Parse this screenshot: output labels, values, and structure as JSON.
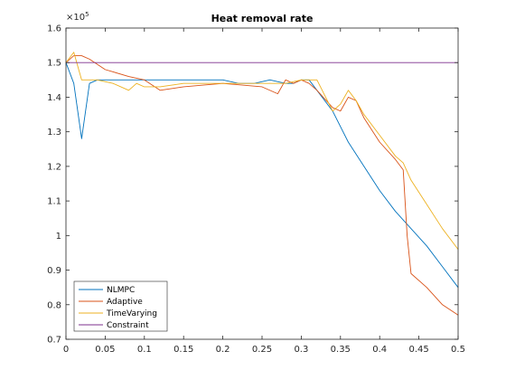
{
  "chart_data": {
    "type": "line",
    "title": "Heat removal rate",
    "xlabel": "",
    "ylabel": "",
    "y_exponent_label": "×10",
    "y_exponent_power": "5",
    "xlim": [
      0,
      0.5
    ],
    "ylim": [
      0.7,
      1.6
    ],
    "xticks": [
      0,
      0.05,
      0.1,
      0.15,
      0.2,
      0.25,
      0.3,
      0.35,
      0.4,
      0.45,
      0.5
    ],
    "xtick_labels": [
      "0",
      "0.05",
      "0.1",
      "0.15",
      "0.2",
      "0.25",
      "0.3",
      "0.35",
      "0.4",
      "0.45",
      "0.5"
    ],
    "yticks": [
      0.7,
      0.8,
      0.9,
      1.0,
      1.1,
      1.2,
      1.3,
      1.4,
      1.5,
      1.6
    ],
    "ytick_labels": [
      "0.7",
      "0.8",
      "0.9",
      "1",
      "1.1",
      "1.2",
      "1.3",
      "1.4",
      "1.5",
      "1.6"
    ],
    "grid": false,
    "legend_position": "bottom-left",
    "series": [
      {
        "name": "NLMPC",
        "color": "#0072BD",
        "x": [
          0,
          0.01,
          0.02,
          0.03,
          0.04,
          0.06,
          0.1,
          0.15,
          0.2,
          0.22,
          0.24,
          0.26,
          0.28,
          0.29,
          0.3,
          0.31,
          0.32,
          0.34,
          0.36,
          0.38,
          0.4,
          0.42,
          0.44,
          0.46,
          0.48,
          0.5
        ],
        "y": [
          1.5,
          1.44,
          1.28,
          1.44,
          1.45,
          1.45,
          1.45,
          1.45,
          1.45,
          1.44,
          1.44,
          1.45,
          1.44,
          1.44,
          1.45,
          1.45,
          1.42,
          1.36,
          1.27,
          1.2,
          1.13,
          1.07,
          1.02,
          0.97,
          0.91,
          0.85
        ]
      },
      {
        "name": "Adaptive",
        "color": "#D95319",
        "x": [
          0,
          0.01,
          0.02,
          0.03,
          0.05,
          0.08,
          0.1,
          0.12,
          0.15,
          0.2,
          0.25,
          0.27,
          0.28,
          0.29,
          0.3,
          0.31,
          0.32,
          0.34,
          0.35,
          0.36,
          0.37,
          0.38,
          0.4,
          0.42,
          0.43,
          0.435,
          0.44,
          0.46,
          0.48,
          0.5
        ],
        "y": [
          1.5,
          1.52,
          1.52,
          1.51,
          1.48,
          1.46,
          1.45,
          1.42,
          1.43,
          1.44,
          1.43,
          1.41,
          1.45,
          1.44,
          1.45,
          1.44,
          1.42,
          1.37,
          1.36,
          1.4,
          1.39,
          1.34,
          1.27,
          1.22,
          1.19,
          1.0,
          0.89,
          0.85,
          0.8,
          0.77
        ]
      },
      {
        "name": "TimeVarying",
        "color": "#EDB120",
        "x": [
          0,
          0.01,
          0.02,
          0.04,
          0.06,
          0.08,
          0.09,
          0.1,
          0.12,
          0.15,
          0.2,
          0.25,
          0.28,
          0.3,
          0.32,
          0.34,
          0.35,
          0.36,
          0.37,
          0.38,
          0.4,
          0.42,
          0.43,
          0.44,
          0.46,
          0.48,
          0.5
        ],
        "y": [
          1.5,
          1.53,
          1.45,
          1.45,
          1.44,
          1.42,
          1.44,
          1.43,
          1.43,
          1.44,
          1.44,
          1.44,
          1.44,
          1.45,
          1.45,
          1.36,
          1.38,
          1.42,
          1.39,
          1.35,
          1.29,
          1.23,
          1.21,
          1.16,
          1.09,
          1.02,
          0.96
        ]
      },
      {
        "name": "Constraint",
        "color": "#7E2F8E",
        "x": [
          0,
          0.5
        ],
        "y": [
          1.5,
          1.5
        ]
      }
    ]
  }
}
